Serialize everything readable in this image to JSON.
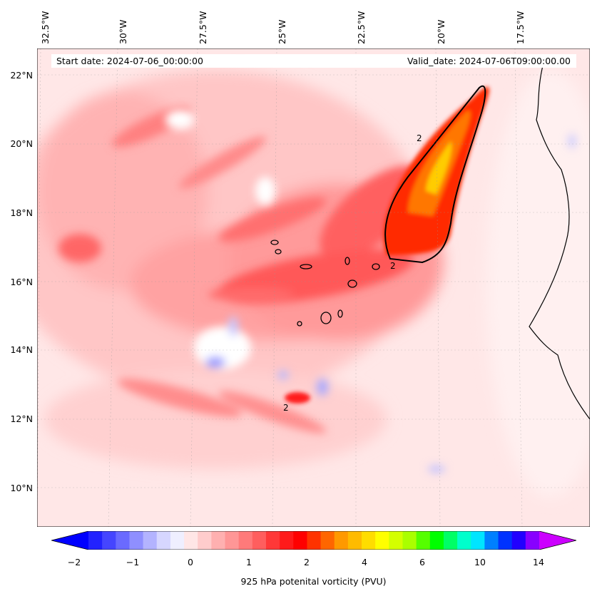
{
  "header": {
    "start_date": "Start date: 2024-07-06_00:00:00",
    "valid_date": "Valid_date: 2024-07-06T09:00:00.00"
  },
  "longitude_labels": [
    "32.5°W",
    "30°W",
    "27.5°W",
    "25°W",
    "22.5°W",
    "20°W",
    "17.5°W"
  ],
  "latitude_labels": [
    "22°N",
    "20°N",
    "18°N",
    "16°N",
    "14°N",
    "12°N",
    "10°N"
  ],
  "colorbar": {
    "label": "925 hPa potenital vorticity (PVU)",
    "tick_labels": [
      "−2",
      "−1",
      "0",
      "1",
      "2",
      "4",
      "6",
      "10",
      "14"
    ],
    "colors": [
      "#0000ff",
      "#2222ff",
      "#4545ff",
      "#6a6aff",
      "#8f8fff",
      "#b3b3ff",
      "#d6d6ff",
      "#efefff",
      "#ffe6e6",
      "#ffcccc",
      "#ffb0b0",
      "#ff9696",
      "#ff7a7a",
      "#ff5e5e",
      "#ff3838",
      "#ff1a1a",
      "#ff0000",
      "#ff3300",
      "#ff6600",
      "#ff9900",
      "#ffbb00",
      "#ffdd00",
      "#ffff00",
      "#d4ff00",
      "#aaff00",
      "#55ff00",
      "#00ff00",
      "#00ff66",
      "#00ffcc",
      "#00e5ff",
      "#0080ff",
      "#0033ff",
      "#2200ff",
      "#8800ff",
      "#cc00ff"
    ],
    "extend": "both"
  },
  "contour_label": "2"
}
